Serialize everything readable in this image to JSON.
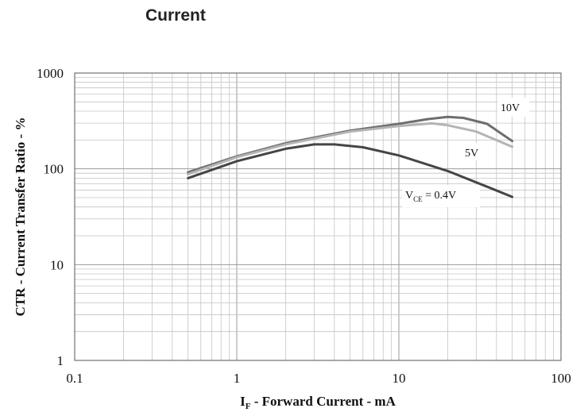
{
  "title": "Current",
  "chart_data": {
    "type": "line",
    "xscale": "log",
    "yscale": "log",
    "xlim": [
      0.1,
      100
    ],
    "ylim": [
      1,
      1000
    ],
    "grid": true,
    "xlabel": {
      "main": "I",
      "sub": "F",
      "rest": " - Forward Current - mA"
    },
    "ylabel": "CTR - Current Transfer Ratio - %",
    "xticks": [
      {
        "value": 0.1,
        "label": "0.1"
      },
      {
        "value": 1,
        "label": "1"
      },
      {
        "value": 10,
        "label": "10"
      },
      {
        "value": 100,
        "label": "100"
      }
    ],
    "yticks": [
      {
        "value": 1,
        "label": "1"
      },
      {
        "value": 10,
        "label": "10"
      },
      {
        "value": 100,
        "label": "100"
      },
      {
        "value": 1000,
        "label": "1000"
      }
    ],
    "series": [
      {
        "color": "#6e6e6e",
        "label": {
          "text": "10V"
        },
        "points": [
          [
            0.5,
            92
          ],
          [
            1,
            135
          ],
          [
            2,
            185
          ],
          [
            5,
            250
          ],
          [
            10,
            295
          ],
          [
            15,
            330
          ],
          [
            20,
            348
          ],
          [
            25,
            340
          ],
          [
            35,
            295
          ],
          [
            50,
            195
          ]
        ]
      },
      {
        "color": "#b4b4b4",
        "label": {
          "text": "5V"
        },
        "points": [
          [
            0.5,
            88
          ],
          [
            1,
            132
          ],
          [
            2,
            180
          ],
          [
            5,
            245
          ],
          [
            10,
            280
          ],
          [
            16,
            298
          ],
          [
            20,
            285
          ],
          [
            30,
            245
          ],
          [
            50,
            170
          ]
        ]
      },
      {
        "color": "#454545",
        "label": {
          "text": "V",
          "sub": "CE",
          "rest": " = 0.4V"
        },
        "points": [
          [
            0.5,
            80
          ],
          [
            1,
            120
          ],
          [
            2,
            162
          ],
          [
            3,
            180
          ],
          [
            4,
            180
          ],
          [
            6,
            168
          ],
          [
            10,
            138
          ],
          [
            20,
            95
          ],
          [
            35,
            65
          ],
          [
            50,
            51
          ]
        ]
      }
    ]
  }
}
